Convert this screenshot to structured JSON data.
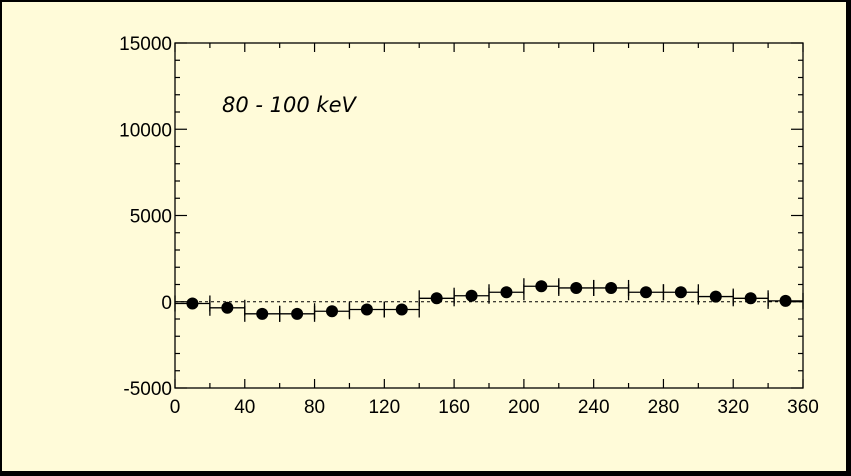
{
  "chart_data": {
    "type": "scatter",
    "title": "",
    "xlabel": "",
    "ylabel": "",
    "annotation": "80 - 100 keV",
    "xlim": [
      0,
      360
    ],
    "ylim": [
      -5000,
      15000
    ],
    "x_ticks": [
      0,
      40,
      80,
      120,
      160,
      200,
      240,
      280,
      320,
      360
    ],
    "y_ticks": [
      -5000,
      0,
      5000,
      10000,
      15000
    ],
    "x_minor_step": 20,
    "y_minor_step": 1000,
    "zero_line": "dashed",
    "grid": false,
    "marker": "filled-circle",
    "marker_color": "#000000",
    "x_error": 10,
    "series": [
      {
        "x": [
          10,
          30,
          50,
          70,
          90,
          110,
          130,
          150,
          170,
          190,
          210,
          230,
          250,
          270,
          290,
          310,
          330,
          350
        ],
        "y": [
          -100,
          -350,
          -700,
          -700,
          -550,
          -450,
          -450,
          200,
          350,
          550,
          900,
          800,
          800,
          550,
          550,
          300,
          200,
          50
        ]
      }
    ]
  }
}
